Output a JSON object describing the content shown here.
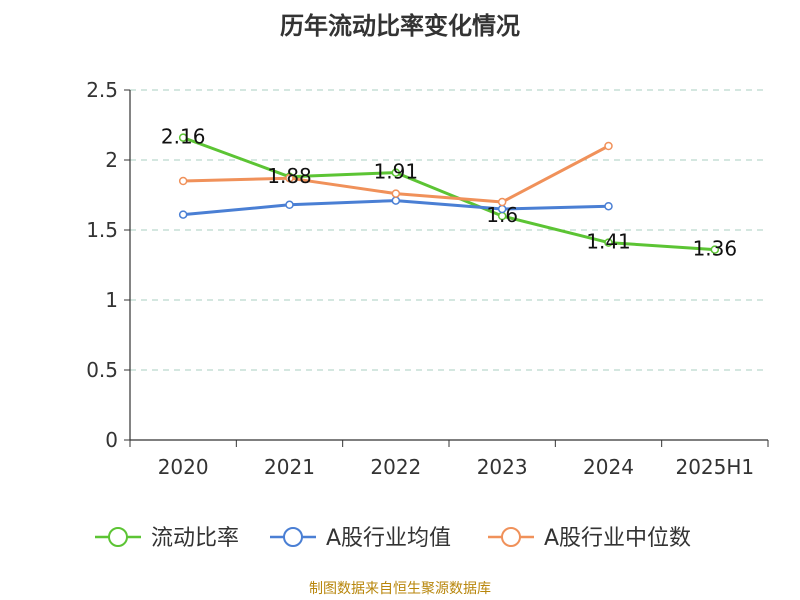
{
  "source": "制图数据来自恒生聚源数据库",
  "chart_data": {
    "type": "line",
    "title": "历年流动比率变化情况",
    "xlabel": "",
    "ylabel": "",
    "categories": [
      "2020",
      "2021",
      "2022",
      "2023",
      "2024",
      "2025H1"
    ],
    "ylim": [
      0,
      2.5
    ],
    "yticks": [
      "0",
      "0.5",
      "1",
      "1.5",
      "2",
      "2.5"
    ],
    "grid": true,
    "legend_position": "bottom",
    "series": [
      {
        "name": "流动比率",
        "color": "#5cc434",
        "values": [
          2.16,
          1.88,
          1.91,
          1.6,
          1.41,
          1.36
        ],
        "labels": [
          "2.16",
          "1.88",
          "1.91",
          "1.6",
          "1.41",
          "1.36"
        ]
      },
      {
        "name": "A股行业均值",
        "color": "#4a7fd4",
        "values": [
          1.61,
          1.68,
          1.71,
          1.65,
          1.67,
          null
        ]
      },
      {
        "name": "A股行业中位数",
        "color": "#f0915a",
        "values": [
          1.85,
          1.87,
          1.76,
          1.7,
          2.1,
          null
        ]
      }
    ]
  }
}
